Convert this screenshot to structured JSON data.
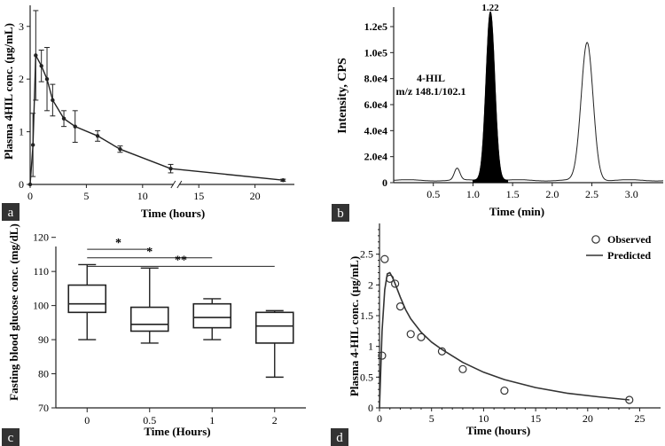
{
  "panels": [
    {
      "letter": "a"
    },
    {
      "letter": "b"
    },
    {
      "letter": "c"
    },
    {
      "letter": "d"
    }
  ],
  "chart_data": [
    {
      "id": "a",
      "type": "line",
      "title": "",
      "xlabel": "Time (hours)",
      "ylabel": "Plasma 4HIL conc. (μg/mL)",
      "xlim": [
        0,
        23.5
      ],
      "ylim": [
        0,
        3.4
      ],
      "xticks": [
        0,
        5,
        10,
        15,
        20
      ],
      "yticks": [
        0,
        1,
        2,
        3
      ],
      "axis_break_at": 13,
      "series": [
        {
          "name": "Plasma 4HIL",
          "x": [
            0,
            0.25,
            0.5,
            1,
            1.5,
            2,
            3,
            4,
            6,
            8,
            12.5,
            22.5
          ],
          "y": [
            0,
            0.75,
            2.45,
            2.25,
            2.0,
            1.6,
            1.25,
            1.1,
            0.92,
            0.67,
            0.3,
            0.08
          ],
          "err": [
            0,
            0.6,
            0.85,
            0.3,
            0.6,
            0.3,
            0.15,
            0.3,
            0.1,
            0.06,
            0.08,
            0.02
          ]
        }
      ]
    },
    {
      "id": "b",
      "type": "line",
      "title": "",
      "xlabel": "Time (min)",
      "ylabel": "Intensity, CPS",
      "xlim": [
        0,
        3.4
      ],
      "ylim": [
        0,
        135000
      ],
      "xticks": [
        0.5,
        1.0,
        1.5,
        2.0,
        2.5,
        3.0
      ],
      "xtick_labels": [
        "0.5",
        "1.0",
        "1.5",
        "2.0",
        "2.5",
        "3.0"
      ],
      "yticks": [
        0,
        20000,
        40000,
        60000,
        80000,
        100000,
        120000
      ],
      "ytick_labels": [
        "0",
        "2.0e4",
        "4.0e4",
        "6.0e4",
        "8.0e4",
        "1.0e5",
        "1.2e5"
      ],
      "peak_label": "1.22",
      "annotation_line1": "4-HIL",
      "annotation_line2": "m/z 148.1/102.1",
      "peaks": [
        {
          "rt": 1.22,
          "height": 130000,
          "sigma": 0.055,
          "filled": true
        },
        {
          "rt": 2.44,
          "height": 106000,
          "sigma": 0.075,
          "filled": false
        },
        {
          "rt": 0.8,
          "height": 9000,
          "sigma": 0.035,
          "filled": false
        }
      ]
    },
    {
      "id": "c",
      "type": "box",
      "title": "",
      "xlabel": "Time (Hours)",
      "ylabel": "Fasting blood glucose conc. (mg/dL)",
      "categories": [
        "0",
        "0.5",
        "1",
        "2"
      ],
      "ylim": [
        70,
        122
      ],
      "yticks": [
        70,
        80,
        90,
        100,
        110,
        120
      ],
      "boxes": [
        {
          "min": 90,
          "q1": 98,
          "median": 100.5,
          "q3": 106,
          "max": 112
        },
        {
          "min": 89,
          "q1": 92.5,
          "median": 94.5,
          "q3": 99.5,
          "max": 111
        },
        {
          "min": 90,
          "q1": 93.5,
          "median": 96.5,
          "q3": 100.5,
          "max": 102
        },
        {
          "min": 79,
          "q1": 89,
          "median": 94,
          "q3": 98,
          "max": 98.5
        }
      ],
      "significance": [
        {
          "from": "0",
          "to": "0.5",
          "y": 116.5,
          "label": "*"
        },
        {
          "from": "0",
          "to": "1",
          "y": 114,
          "label": "*"
        },
        {
          "from": "0",
          "to": "2",
          "y": 111.5,
          "label": "**"
        }
      ]
    },
    {
      "id": "d",
      "type": "scatter",
      "title": "",
      "xlabel": "Time (hours)",
      "ylabel": "Plasma 4-HIL conc. (μg/mL)",
      "xlim": [
        0,
        27
      ],
      "ylim": [
        0,
        3.0
      ],
      "xticks": [
        0,
        5,
        10,
        15,
        20,
        25
      ],
      "yticks": [
        0,
        0.5,
        1,
        1.5,
        2,
        2.5
      ],
      "series": [
        {
          "name": "Observed",
          "style": "marker",
          "x": [
            0.25,
            0.5,
            1,
            1.5,
            2,
            3,
            4,
            6,
            8,
            12,
            24
          ],
          "y": [
            0.85,
            2.42,
            2.1,
            2.02,
            1.65,
            1.2,
            1.15,
            0.92,
            0.63,
            0.28,
            0.13
          ]
        },
        {
          "name": "Predicted",
          "style": "line",
          "x": [
            0,
            0.25,
            0.5,
            0.75,
            1,
            1.25,
            1.5,
            2,
            2.5,
            3,
            4,
            5,
            6,
            8,
            10,
            12,
            15,
            18,
            21,
            24
          ],
          "y": [
            0,
            1.25,
            1.92,
            2.18,
            2.2,
            2.12,
            2.02,
            1.8,
            1.6,
            1.45,
            1.23,
            1.07,
            0.95,
            0.74,
            0.58,
            0.46,
            0.33,
            0.24,
            0.18,
            0.13
          ]
        }
      ]
    }
  ]
}
